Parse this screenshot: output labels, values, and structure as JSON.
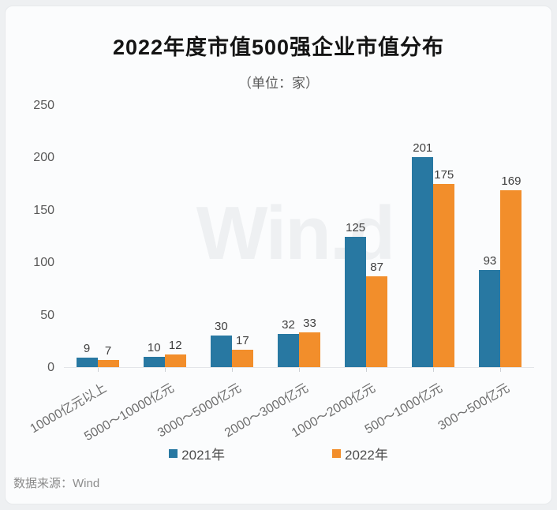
{
  "watermark": "Win.d",
  "source": "数据来源：Wind",
  "chart_data": {
    "type": "bar",
    "title": "2022年度市值500强企业市值分布",
    "subtitle": "（单位：家）",
    "categories": [
      "10000亿元以上",
      "5000～10000亿元",
      "3000～5000亿元",
      "2000～3000亿元",
      "1000～2000亿元",
      "500～1000亿元",
      "300～500亿元"
    ],
    "series": [
      {
        "name": "2021年",
        "color": "#2878a2",
        "values": [
          9,
          10,
          30,
          32,
          125,
          201,
          93
        ]
      },
      {
        "name": "2022年",
        "color": "#f28e2b",
        "values": [
          7,
          12,
          17,
          33,
          87,
          175,
          169
        ]
      }
    ],
    "xlabel": "",
    "ylabel": "",
    "ylim": [
      0,
      250
    ],
    "yticks": [
      0,
      50,
      100,
      150,
      200,
      250
    ],
    "grid": false,
    "legend_position": "bottom",
    "value_labels": true
  }
}
